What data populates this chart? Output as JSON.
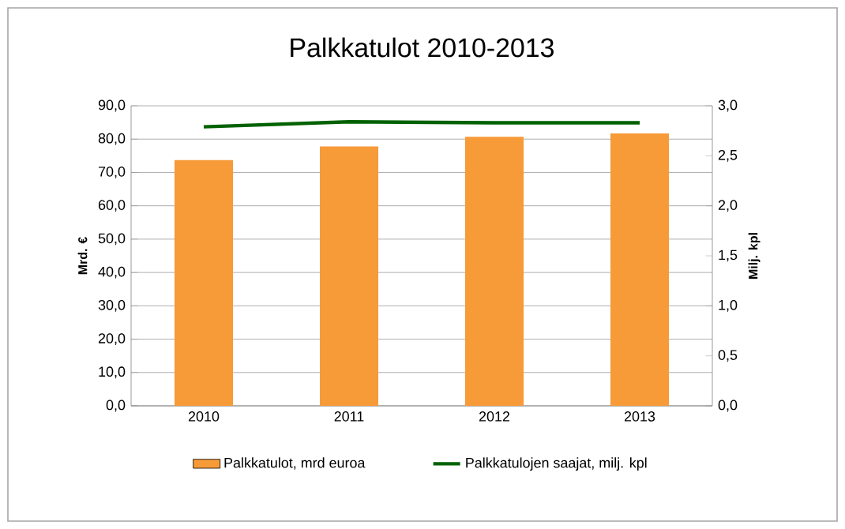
{
  "chart_data": {
    "type": "bar",
    "title": "Palkkatulot 2010-2013",
    "categories": [
      "2010",
      "2011",
      "2012",
      "2013"
    ],
    "series": [
      {
        "name": "Palkkatulot, mrd euroa",
        "color": "#f79a38",
        "values": [
          73.7,
          77.8,
          80.7,
          81.7
        ]
      },
      {
        "name": "Palkkatulojen saajat, milj. kpl",
        "type": "line",
        "axis": "y2",
        "color": "#006100",
        "values": [
          2.79,
          2.84,
          2.83,
          2.83
        ]
      }
    ],
    "ylabel": "Mrd. €",
    "y2label": "Milj. kpl",
    "ylim": [
      0,
      90
    ],
    "yticks": [
      {
        "value": 0,
        "label": "0,0"
      },
      {
        "value": 10,
        "label": "10,0"
      },
      {
        "value": 20,
        "label": "20,0"
      },
      {
        "value": 30,
        "label": "30,0"
      },
      {
        "value": 40,
        "label": "40,0"
      },
      {
        "value": 50,
        "label": "50,0"
      },
      {
        "value": 60,
        "label": "60,0"
      },
      {
        "value": 70,
        "label": "70,0"
      },
      {
        "value": 80,
        "label": "80,0"
      },
      {
        "value": 90,
        "label": "90,0"
      }
    ],
    "y2lim": [
      0,
      3
    ],
    "y2ticks": [
      {
        "value": 0,
        "label": "0,0"
      },
      {
        "value": 0.5,
        "label": "0,5"
      },
      {
        "value": 1,
        "label": "1,0"
      },
      {
        "value": 1.5,
        "label": "1,5"
      },
      {
        "value": 2,
        "label": "2,0"
      },
      {
        "value": 2.5,
        "label": "2,5"
      },
      {
        "value": 3,
        "label": "3,0"
      }
    ],
    "grid": "y",
    "legend": "bottom"
  }
}
